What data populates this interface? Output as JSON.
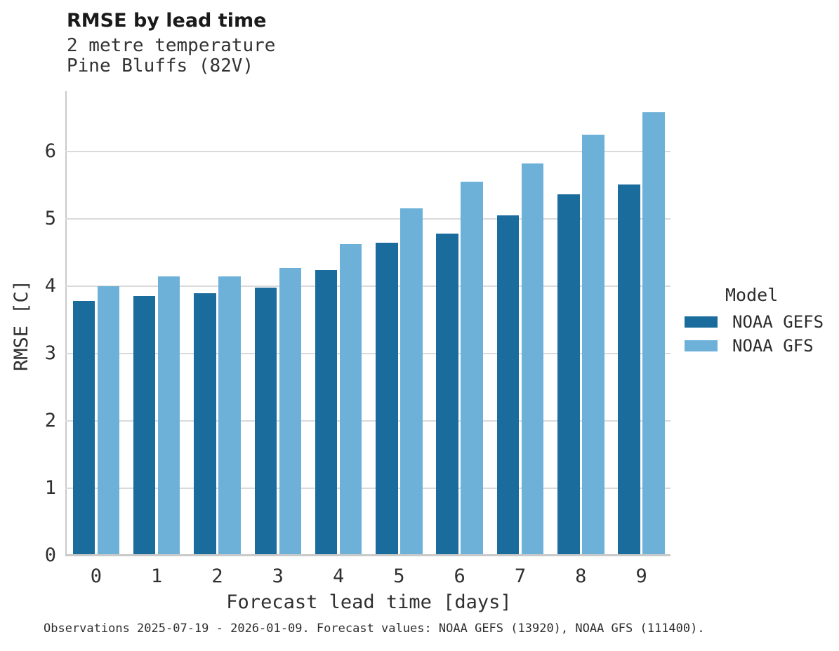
{
  "header": {
    "title": "RMSE by lead time",
    "subtitle_line1": "2 metre temperature",
    "subtitle_line2": "Pine Bluffs (82V)"
  },
  "legend": {
    "title": "Model",
    "items": [
      {
        "label": "NOAA GEFS",
        "color": "#1a6c9d"
      },
      {
        "label": "NOAA GFS",
        "color": "#6db1d8"
      }
    ]
  },
  "footer": {
    "caption": "Observations 2025-07-19 - 2026-01-09. Forecast values: NOAA GEFS (13920), NOAA GFS (111400)."
  },
  "chart_data": {
    "type": "bar",
    "title": "RMSE by lead time",
    "subtitle": [
      "2 metre temperature",
      "Pine Bluffs (82V)"
    ],
    "xlabel": "Forecast lead time [days]",
    "ylabel": "RMSE [C]",
    "categories": [
      "0",
      "1",
      "2",
      "3",
      "4",
      "5",
      "6",
      "7",
      "8",
      "9"
    ],
    "series": [
      {
        "name": "NOAA GEFS",
        "color": "#1a6c9d",
        "values": [
          3.76,
          3.83,
          3.87,
          3.96,
          4.22,
          4.62,
          4.76,
          5.03,
          5.34,
          5.48
        ]
      },
      {
        "name": "NOAA GFS",
        "color": "#6db1d8",
        "values": [
          3.98,
          4.12,
          4.12,
          4.25,
          4.6,
          5.13,
          5.53,
          5.8,
          6.22,
          6.56
        ]
      }
    ],
    "ylim": [
      0,
      6.89
    ],
    "yticks": [
      0,
      1,
      2,
      3,
      4,
      5,
      6
    ],
    "grid": true,
    "legend_title": "Model",
    "legend_position": "right",
    "caption": "Observations 2025-07-19 - 2026-01-09. Forecast values: NOAA GEFS (13920), NOAA GFS (111400)."
  }
}
